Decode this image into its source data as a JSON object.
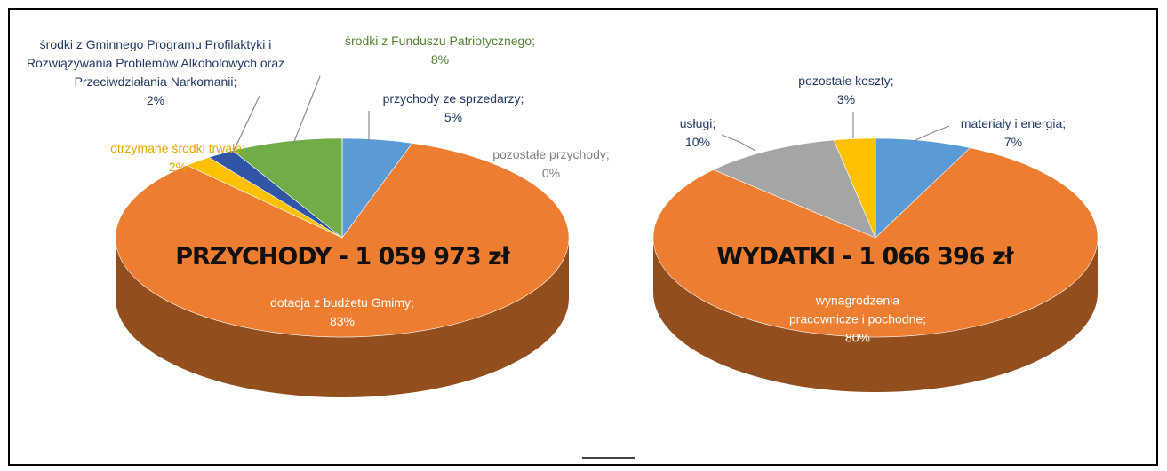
{
  "chart_data": [
    {
      "type": "pie",
      "title": "PRZYCHODY - 1 059 973 zł",
      "categories": [
        "przychody ze sprzedarzy;",
        "dotacja z budżetu Gmimy;",
        "otrzymane środki trwałe;",
        "środki z Gminnego Programu Profilaktyki i Rozwiązywania Problemów Alkoholowych oraz Przeciwdziałania Narkomanii;",
        "środki z Funduszu Patriotycznego;",
        "pozostałe przychody;"
      ],
      "values": [
        5,
        83,
        2,
        2,
        8,
        0
      ],
      "value_labels": [
        "5%",
        "83%",
        "2%",
        "2%",
        "8%",
        "0%"
      ],
      "colors": [
        "#5b9bd5",
        "#ed7d31",
        "#ffc000",
        "#2f55a4",
        "#70ad47",
        "#a5a5a5"
      ]
    },
    {
      "type": "pie",
      "title": "WYDATKI  - 1 066 396 zł",
      "categories": [
        "materiały i energia;",
        "wynagrodzenia pracownicze i pochodne;",
        "usługi;",
        "pozostałe koszty;"
      ],
      "values": [
        7,
        80,
        10,
        3
      ],
      "value_labels": [
        "7%",
        "80%",
        "10%",
        "3%"
      ],
      "colors": [
        "#5b9bd5",
        "#ed7d31",
        "#a5a5a5",
        "#ffc000"
      ]
    }
  ]
}
